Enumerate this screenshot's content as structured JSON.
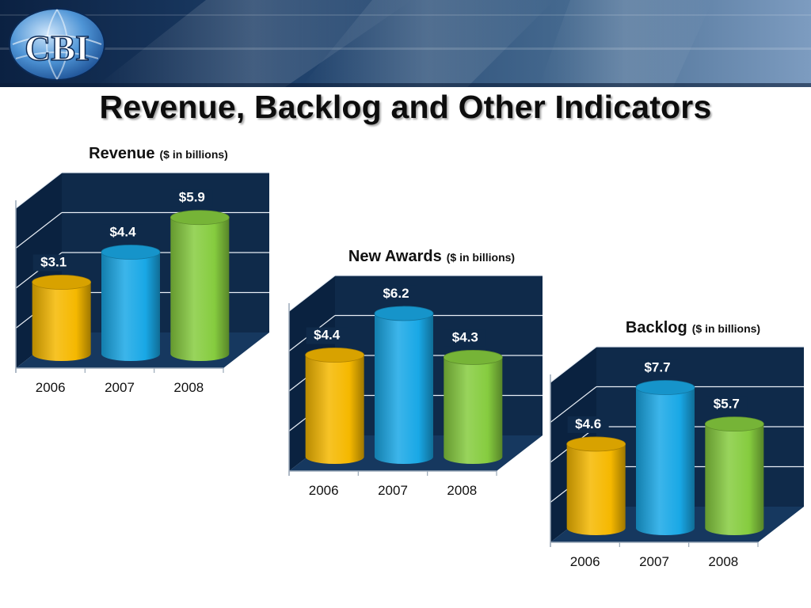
{
  "page": {
    "title": "Revenue, Backlog and Other Indicators",
    "logo_text": "CBI"
  },
  "colors": {
    "banner_dark": "#0b2142",
    "banner_light": "#6d8fb5",
    "plot_back": "#0f2a4a",
    "plot_floor": "#16385f",
    "grid": "#e8eef5",
    "bar_2006": "#f5b800",
    "bar_2007": "#19a8e6",
    "bar_2008": "#86cc3f"
  },
  "chart_data": [
    {
      "type": "bar",
      "title": "Revenue",
      "subtitle": "($ in billions)",
      "categories": [
        "2006",
        "2007",
        "2008"
      ],
      "values": [
        3.1,
        4.4,
        5.9
      ],
      "value_labels": [
        "$3.1",
        "$4.4",
        "$5.9"
      ],
      "ylim": [
        0,
        7.5
      ],
      "grid": true,
      "style": "3d-cylinder"
    },
    {
      "type": "bar",
      "title": "New Awards",
      "subtitle": "($ in billions)",
      "categories": [
        "2006",
        "2007",
        "2008"
      ],
      "values": [
        4.4,
        6.2,
        4.3
      ],
      "value_labels": [
        "$4.4",
        "$6.2",
        "$4.3"
      ],
      "ylim": [
        0,
        7.5
      ],
      "grid": true,
      "style": "3d-cylinder"
    },
    {
      "type": "bar",
      "title": "Backlog",
      "subtitle": "($ in billions)",
      "categories": [
        "2006",
        "2007",
        "2008"
      ],
      "values": [
        4.6,
        7.7,
        5.7
      ],
      "value_labels": [
        "$4.6",
        "$7.7",
        "$5.7"
      ],
      "ylim": [
        0,
        9.5
      ],
      "grid": true,
      "style": "3d-cylinder"
    }
  ]
}
